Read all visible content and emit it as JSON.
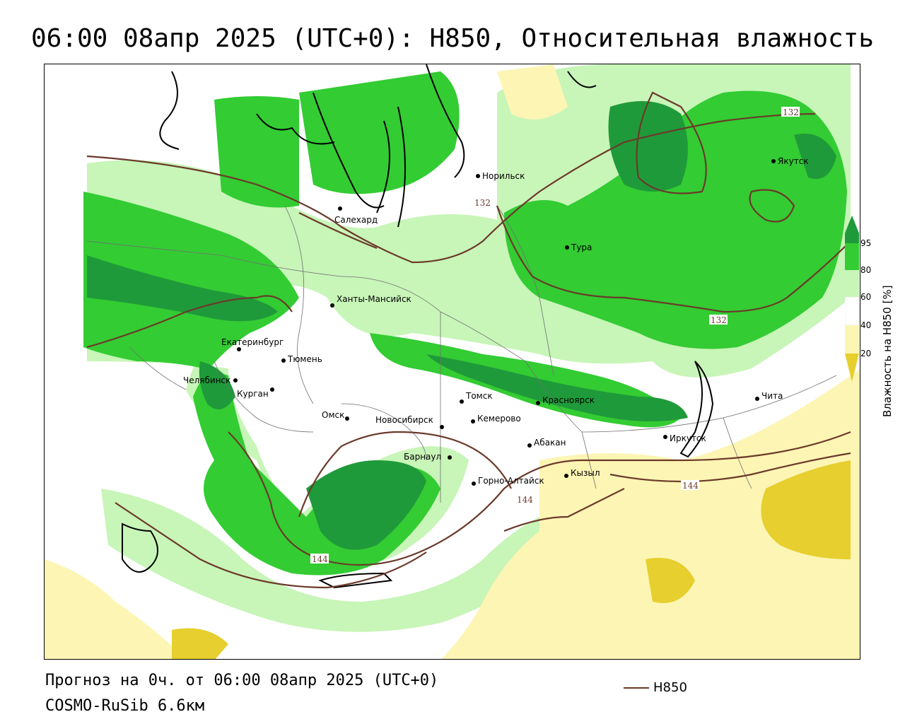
{
  "title": "06:00 08апр 2025 (UTC+0): H850, Относительная влажность",
  "footer": {
    "forecast": "Прогноз на 0ч. от 06:00 08апр 2025 (UTC+0)",
    "model": "COSMO-RuSib 6.6км"
  },
  "legend": {
    "line_label": "H850"
  },
  "colorbar": {
    "title": "Влажность на H850 [%]",
    "ticks": [
      "95",
      "80",
      "60",
      "40",
      "20"
    ],
    "colors": {
      "above95": "#1f9a3a",
      "c80_95": "#33cc33",
      "c60_80": "#c8f5b8",
      "c40_60": "#ffffff",
      "c20_40": "#fdf5b4",
      "below20": "#e6cf2e"
    }
  },
  "isolines": {
    "labels": [
      "132",
      "132",
      "132",
      "144",
      "144",
      "144"
    ],
    "color": "#6b3a2a"
  },
  "cities": [
    "Норильск",
    "Якутск",
    "Салехард",
    "Тура",
    "Ханты-Мансийск",
    "Екатеринбург",
    "Тюмень",
    "Челябинск",
    "Курган",
    "Омск",
    "Новосибирск",
    "Томск",
    "Кемерово",
    "Красноярск",
    "Барнаул",
    "Абакан",
    "Кызыл",
    "Горно-Алтайск",
    "Иркутск",
    "Чита"
  ]
}
